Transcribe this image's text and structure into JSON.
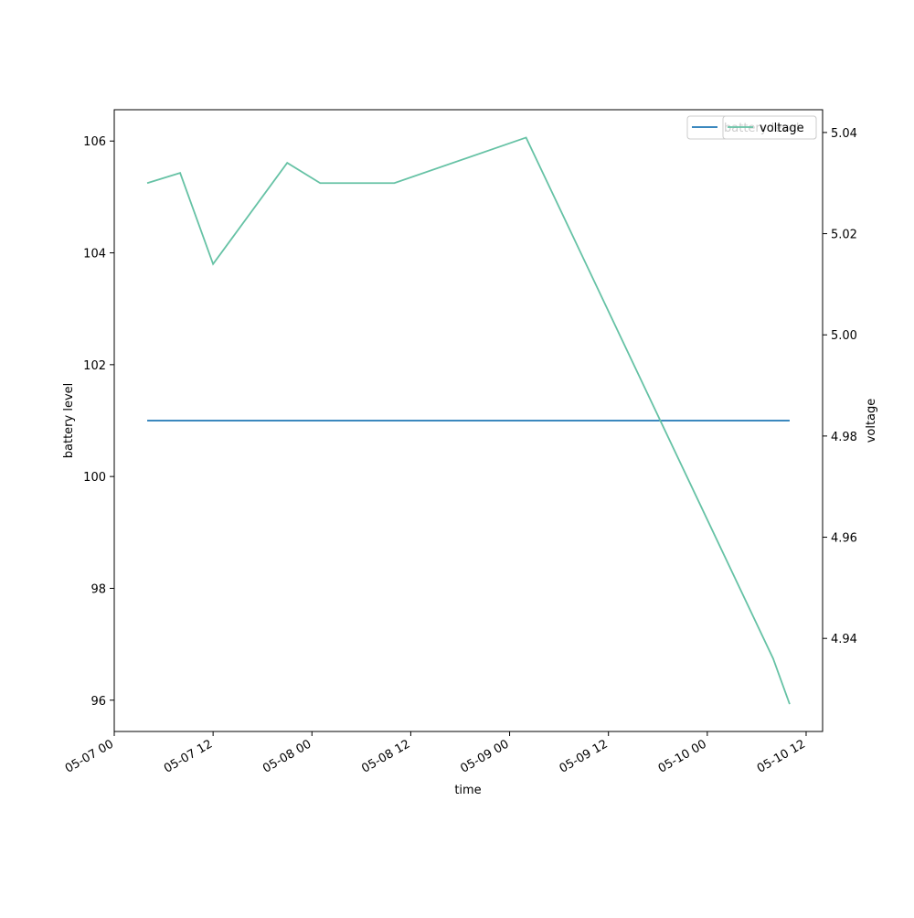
{
  "chart_data": {
    "type": "line",
    "x_label": "time",
    "y_label": "battery level",
    "y2_label": "voltage",
    "series": [
      {
        "name": "battery level",
        "color": "#1f77b4",
        "axis": "y",
        "x": [
          "05-07 04",
          "05-10 10"
        ],
        "values": [
          101,
          101
        ]
      },
      {
        "name": "voltage",
        "color": "#66c2a5",
        "axis": "y2",
        "x": [
          "05-07 04",
          "05-07 08",
          "05-07 12",
          "05-07 21",
          "05-08 01",
          "05-08 10",
          "05-09 02",
          "05-10 08",
          "05-10 10"
        ],
        "values": [
          5.03,
          5.032,
          5.014,
          5.034,
          5.03,
          5.03,
          5.039,
          4.936,
          4.927
        ]
      }
    ],
    "xlim": [
      "05-07 00",
      "05-10 14"
    ],
    "xticks": [
      "05-07 00",
      "05-07 12",
      "05-08 00",
      "05-08 12",
      "05-09 00",
      "05-09 12",
      "05-10 00",
      "05-10 12"
    ],
    "ylim": [
      95.44,
      106.56
    ],
    "yticks": [
      96,
      98,
      100,
      102,
      104,
      106
    ],
    "y2lim": [
      4.9216,
      5.0445
    ],
    "y2ticks": [
      4.94,
      4.96,
      4.98,
      {
        "value": 5,
        "label": "5.00"
      },
      5.02,
      5.04
    ],
    "legend": "upper right"
  }
}
